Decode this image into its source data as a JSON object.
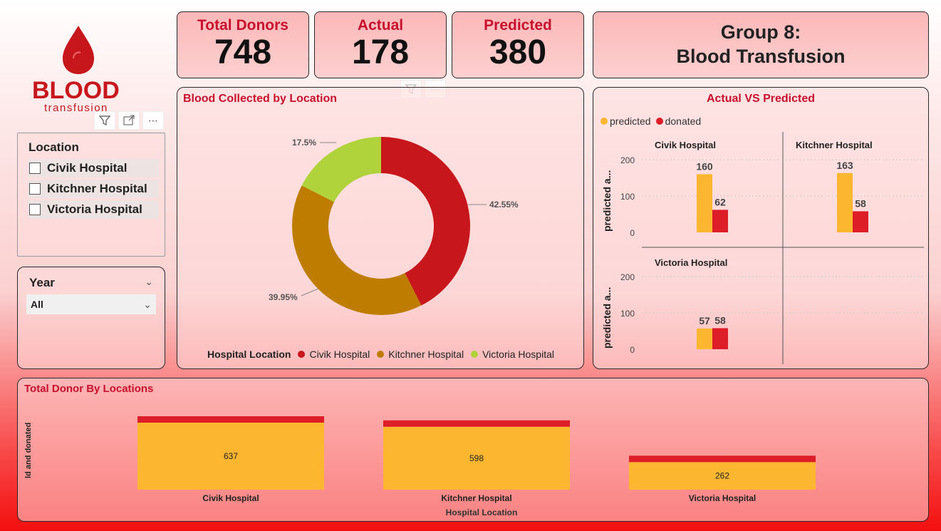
{
  "logo": {
    "word": "BLOOD",
    "sub": "transfusion"
  },
  "kpis": {
    "total_donors": {
      "label": "Total Donors",
      "value": "748"
    },
    "actual": {
      "label": "Actual",
      "value": "178"
    },
    "predicted": {
      "label": "Predicted",
      "value": "380"
    }
  },
  "group": {
    "line1": "Group 8:",
    "line2": "Blood Transfusion"
  },
  "location_slicer": {
    "title": "Location",
    "items": [
      "Civik Hospital",
      "Kitchner Hospital",
      "Victoria Hospital"
    ]
  },
  "year_slicer": {
    "title": "Year",
    "selected": "All"
  },
  "donut": {
    "title": "Blood Collected by Location",
    "legend_title": "Hospital Location",
    "labels": [
      "42.55%",
      "39.95%",
      "17.5%"
    ]
  },
  "actual_vs_predicted": {
    "title": "Actual VS Predicted",
    "legend": [
      "predicted",
      "donated"
    ],
    "ylabel": "predicted a...",
    "yticks": [
      "200",
      "100",
      "0"
    ]
  },
  "total_donor": {
    "title": "Total Donor By Locations",
    "ylabel": "ld and donated",
    "xlabel": "Hospital Location"
  },
  "colors": {
    "civik": "#c8161d",
    "kitchner": "#bf7d00",
    "victoria": "#b0d23a",
    "predicted": "#fdb630",
    "donated": "#dd1d28"
  },
  "chart_data": [
    {
      "type": "pie",
      "title": "Blood Collected by Location",
      "categories": [
        "Civik Hospital",
        "Kitchner Hospital",
        "Victoria Hospital"
      ],
      "values": [
        42.55,
        39.95,
        17.5
      ],
      "legend_title": "Hospital Location",
      "legend": "bottom"
    },
    {
      "type": "bar",
      "title": "Actual VS Predicted",
      "panels": [
        {
          "name": "Civik Hospital",
          "predicted": 160,
          "donated": 62
        },
        {
          "name": "Kitchner Hospital",
          "predicted": 163,
          "donated": 58
        },
        {
          "name": "Victoria Hospital",
          "predicted": 57,
          "donated": 58
        }
      ],
      "series": [
        {
          "name": "predicted"
        },
        {
          "name": "donated"
        }
      ],
      "ylim": [
        0,
        200
      ],
      "ylabel": "predicted a...",
      "legend": "top-left"
    },
    {
      "type": "bar",
      "title": "Total Donor By Locations",
      "categories": [
        "Civik Hospital",
        "Kitchner Hospital",
        "Victoria Hospital"
      ],
      "labels": [
        "637",
        "598",
        "262"
      ],
      "values": [
        637,
        598,
        262
      ],
      "xlabel": "Hospital Location",
      "ylabel": "ld and donated"
    }
  ]
}
